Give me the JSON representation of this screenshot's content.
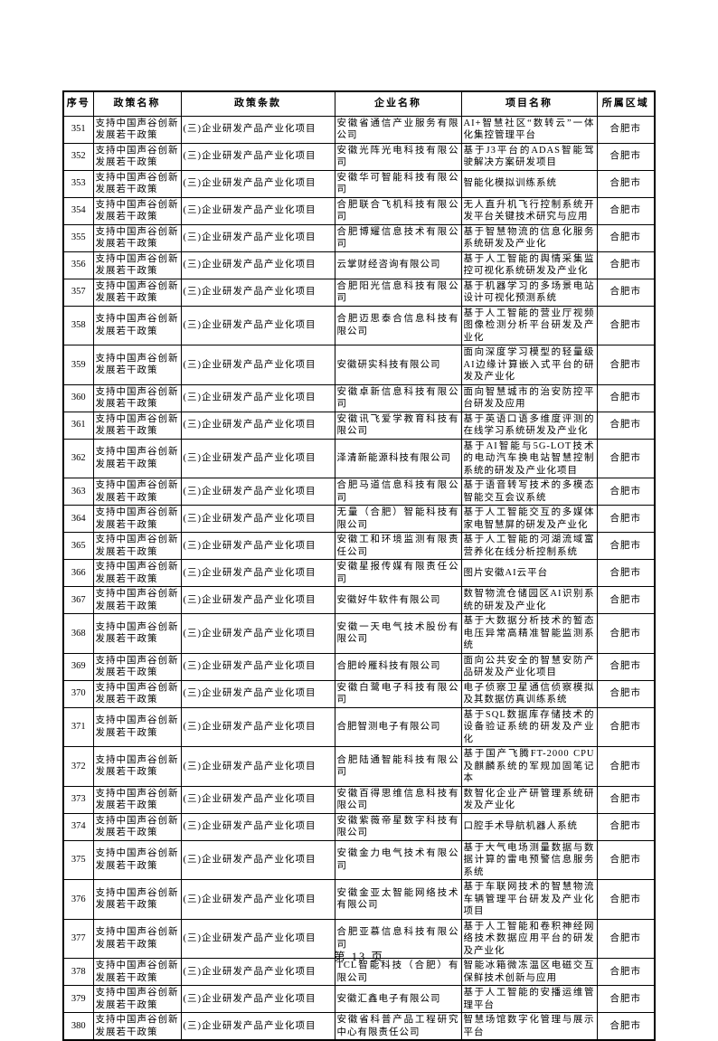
{
  "table": {
    "columns": [
      {
        "key": "no",
        "label": "序号"
      },
      {
        "key": "policy",
        "label": "政策名称"
      },
      {
        "key": "clause",
        "label": "政策条款"
      },
      {
        "key": "company",
        "label": "企业名称"
      },
      {
        "key": "project",
        "label": "项目名称"
      },
      {
        "key": "region",
        "label": "所属区域"
      }
    ],
    "rows": [
      {
        "no": "351",
        "policy": "支持中国声谷创新发展若干政策",
        "clause": "(三)企业研发产品产业化项目",
        "company": "安徽省通信产业服务有限公司",
        "project": "AI+智慧社区“数转云”一体化集控管理平台",
        "region": "合肥市"
      },
      {
        "no": "352",
        "policy": "支持中国声谷创新发展若干政策",
        "clause": "(三)企业研发产品产业化项目",
        "company": "安徽光阵光电科技有限公司",
        "project": "基于J3平台的ADAS智能驾驶解决方案研发项目",
        "region": "合肥市"
      },
      {
        "no": "353",
        "policy": "支持中国声谷创新发展若干政策",
        "clause": "(三)企业研发产品产业化项目",
        "company": "安徽华可智能科技有限公司",
        "project": "智能化模拟训练系统",
        "region": "合肥市"
      },
      {
        "no": "354",
        "policy": "支持中国声谷创新发展若干政策",
        "clause": "(三)企业研发产品产业化项目",
        "company": "合肥联合飞机科技有限公司",
        "project": "无人直升机飞行控制系统开发平台关键技术研究与应用",
        "region": "合肥市"
      },
      {
        "no": "355",
        "policy": "支持中国声谷创新发展若干政策",
        "clause": "(三)企业研发产品产业化项目",
        "company": "合肥博耀信息技术有限公司",
        "project": "基于智慧物流的信息化服务系统研发及产业化",
        "region": "合肥市"
      },
      {
        "no": "356",
        "policy": "支持中国声谷创新发展若干政策",
        "clause": "(三)企业研发产品产业化项目",
        "company": "云掌财经咨询有限公司",
        "project": "基于人工智能的舆情采集监控可视化系统研发及产业化",
        "region": "合肥市"
      },
      {
        "no": "357",
        "policy": "支持中国声谷创新发展若干政策",
        "clause": "(三)企业研发产品产业化项目",
        "company": "合肥阳光信息科技有限公司",
        "project": "基于机器学习的多场景电站设计可视化预测系统",
        "region": "合肥市"
      },
      {
        "no": "358",
        "policy": "支持中国声谷创新发展若干政策",
        "clause": "(三)企业研发产品产业化项目",
        "company": "合肥迈思泰合信息科技有限公司",
        "project": "基于人工智能的营业厅视频图像检测分析平台研发及产业化",
        "region": "合肥市"
      },
      {
        "no": "359",
        "policy": "支持中国声谷创新发展若干政策",
        "clause": "(三)企业研发产品产业化项目",
        "company": "安徽研实科技有限公司",
        "project": "面向深度学习模型的轻量级AI边缘计算嵌入式平台的研发及产业化",
        "region": "合肥市"
      },
      {
        "no": "360",
        "policy": "支持中国声谷创新发展若干政策",
        "clause": "(三)企业研发产品产业化项目",
        "company": "安徽卓新信息科技有限公司",
        "project": "面向智慧城市的治安防控平台研发及应用",
        "region": "合肥市"
      },
      {
        "no": "361",
        "policy": "支持中国声谷创新发展若干政策",
        "clause": "(三)企业研发产品产业化项目",
        "company": "安徽讯飞爱学教育科技有限公司",
        "project": "基于英语口语多维度评测的在线学习系统研发及产业化",
        "region": "合肥市"
      },
      {
        "no": "362",
        "policy": "支持中国声谷创新发展若干政策",
        "clause": "(三)企业研发产品产业化项目",
        "company": "泽清新能源科技有限公司",
        "project": "基于AI智能与5G-LOT技术的电动汽车换电站智慧控制系统的研发及产业化项目",
        "region": "合肥市"
      },
      {
        "no": "363",
        "policy": "支持中国声谷创新发展若干政策",
        "clause": "(三)企业研发产品产业化项目",
        "company": "合肥马道信息科技有限公司",
        "project": "基于语音转写技术的多模态智能交互会议系统",
        "region": "合肥市"
      },
      {
        "no": "364",
        "policy": "支持中国声谷创新发展若干政策",
        "clause": "(三)企业研发产品产业化项目",
        "company": "无量（合肥）智能科技有限公司",
        "project": "基于人工智能交互的多媒体家电智慧屏的研发及产业化",
        "region": "合肥市"
      },
      {
        "no": "365",
        "policy": "支持中国声谷创新发展若干政策",
        "clause": "(三)企业研发产品产业化项目",
        "company": "安徽工和环境监测有限责任公司",
        "project": "基于人工智能的河湖流域富营养化在线分析控制系统",
        "region": "合肥市"
      },
      {
        "no": "366",
        "policy": "支持中国声谷创新发展若干政策",
        "clause": "(三)企业研发产品产业化项目",
        "company": "安徽星报传媒有限责任公司",
        "project": "图片安徽AI云平台",
        "region": "合肥市"
      },
      {
        "no": "367",
        "policy": "支持中国声谷创新发展若干政策",
        "clause": "(三)企业研发产品产业化项目",
        "company": "安徽好牛软件有限公司",
        "project": "数智物流仓储园区AI识别系统的研发及产业化",
        "region": "合肥市"
      },
      {
        "no": "368",
        "policy": "支持中国声谷创新发展若干政策",
        "clause": "(三)企业研发产品产业化项目",
        "company": "安徽一天电气技术股份有限公司",
        "project": "基于大数据分析技术的暂态电压异常高精准智能监测系统",
        "region": "合肥市"
      },
      {
        "no": "369",
        "policy": "支持中国声谷创新发展若干政策",
        "clause": "(三)企业研发产品产业化项目",
        "company": "合肥岭雁科技有限公司",
        "project": "面向公共安全的智慧安防产品研发及产业化项目",
        "region": "合肥市"
      },
      {
        "no": "370",
        "policy": "支持中国声谷创新发展若干政策",
        "clause": "(三)企业研发产品产业化项目",
        "company": "安徽白鹭电子科技有限公司",
        "project": "电子侦察卫星通信侦察模拟及其数据仿真训练系统",
        "region": "合肥市"
      },
      {
        "no": "371",
        "policy": "支持中国声谷创新发展若干政策",
        "clause": "(三)企业研发产品产业化项目",
        "company": "合肥智测电子有限公司",
        "project": "基于SQL数据库存储技术的设备验证系统的研发及产业化",
        "region": "合肥市"
      },
      {
        "no": "372",
        "policy": "支持中国声谷创新发展若干政策",
        "clause": "(三)企业研发产品产业化项目",
        "company": "合肥陆通智能科技有限公司",
        "project": "基于国产飞腾FT-2000 CPU及麒麟系统的军规加固笔记本",
        "region": "合肥市"
      },
      {
        "no": "373",
        "policy": "支持中国声谷创新发展若干政策",
        "clause": "(三)企业研发产品产业化项目",
        "company": "安徽百得思维信息科技有限公司",
        "project": "数智化企业产研管理系统研发及产业化",
        "region": "合肥市"
      },
      {
        "no": "374",
        "policy": "支持中国声谷创新发展若干政策",
        "clause": "(三)企业研发产品产业化项目",
        "company": "安徽紫薇帝星数字科技有限公司",
        "project": "口腔手术导航机器人系统",
        "region": "合肥市"
      },
      {
        "no": "375",
        "policy": "支持中国声谷创新发展若干政策",
        "clause": "(三)企业研发产品产业化项目",
        "company": "安徽金力电气技术有限公司",
        "project": "基于大气电场测量数据与数据计算的雷电预警信息服务系统",
        "region": "合肥市"
      },
      {
        "no": "376",
        "policy": "支持中国声谷创新发展若干政策",
        "clause": "(三)企业研发产品产业化项目",
        "company": "安徽金亚太智能网络技术有限公司",
        "project": "基于车联网技术的智慧物流车辆管理平台研发及产业化项目",
        "region": "合肥市"
      },
      {
        "no": "377",
        "policy": "支持中国声谷创新发展若干政策",
        "clause": "(三)企业研发产品产业化项目",
        "company": "合肥亚慕信息科技有限公司",
        "project": "基于人工智能和卷积神经网络技术数据应用平台的研发及产业化",
        "region": "合肥市"
      },
      {
        "no": "378",
        "policy": "支持中国声谷创新发展若干政策",
        "clause": "(三)企业研发产品产业化项目",
        "company": "TCL智能科技（合肥）有限公司",
        "project": "智能冰箱微冻温区电磁交互保鲜技术创新与应用",
        "region": "合肥市"
      },
      {
        "no": "379",
        "policy": "支持中国声谷创新发展若干政策",
        "clause": "(三)企业研发产品产业化项目",
        "company": "安徽汇鑫电子有限公司",
        "project": "基于人工智能的安播运维管理平台",
        "region": "合肥市"
      },
      {
        "no": "380",
        "policy": "支持中国声谷创新发展若干政策",
        "clause": "(三)企业研发产品产业化项目",
        "company": "安徽省科普产品工程研究中心有限责任公司",
        "project": "智慧场馆数字化管理与展示平台",
        "region": "合肥市"
      }
    ]
  },
  "footer": {
    "page_label": "第 13 页"
  }
}
